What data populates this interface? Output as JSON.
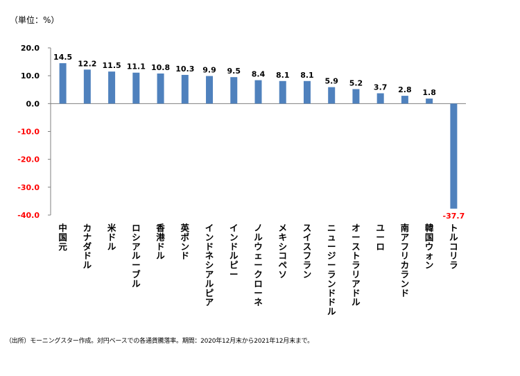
{
  "unit_label": "（単位：%）",
  "source_note": "（出所）モーニングスター作成。対円ベースでの各通貨騰落率。期間：2020年12月末から2021年12月末まで。",
  "colors": {
    "bar": "#4f81bd",
    "negative_text": "#ff0000",
    "axis": "#7f7f7f"
  },
  "chart_data": {
    "type": "bar",
    "categories": [
      "中国元",
      "カナダドル",
      "米ドル",
      "ロシアルーブル",
      "香港ドル",
      "英ポンド",
      "インドネシアルピア",
      "インドルピー",
      "ノルウェークローネ",
      "メキシコペソ",
      "スイスフラン",
      "ニュージーランドドル",
      "オーストラリアドル",
      "ユーロ",
      "南アフリカランド",
      "韓国ウォン",
      "トルコリラ"
    ],
    "values": [
      14.5,
      12.2,
      11.5,
      11.1,
      10.8,
      10.3,
      9.9,
      9.5,
      8.4,
      8.1,
      8.1,
      5.9,
      5.2,
      3.7,
      2.8,
      1.8,
      -37.7
    ],
    "value_labels": [
      "14.5",
      "12.2",
      "11.5",
      "11.1",
      "10.8",
      "10.3",
      "9.9",
      "9.5",
      "8.4",
      "8.1",
      "8.1",
      "5.9",
      "5.2",
      "3.7",
      "2.8",
      "1.8",
      "-37.7"
    ],
    "ylim": [
      -40,
      20
    ],
    "y_ticks": [
      20,
      10,
      0,
      -10,
      -20,
      -30,
      -40
    ],
    "y_tick_labels": [
      "20.0",
      "10.0",
      "0.0",
      "-10.0",
      "-20.0",
      "-30.0",
      "-40.0"
    ],
    "grid": false,
    "legend": "none"
  }
}
